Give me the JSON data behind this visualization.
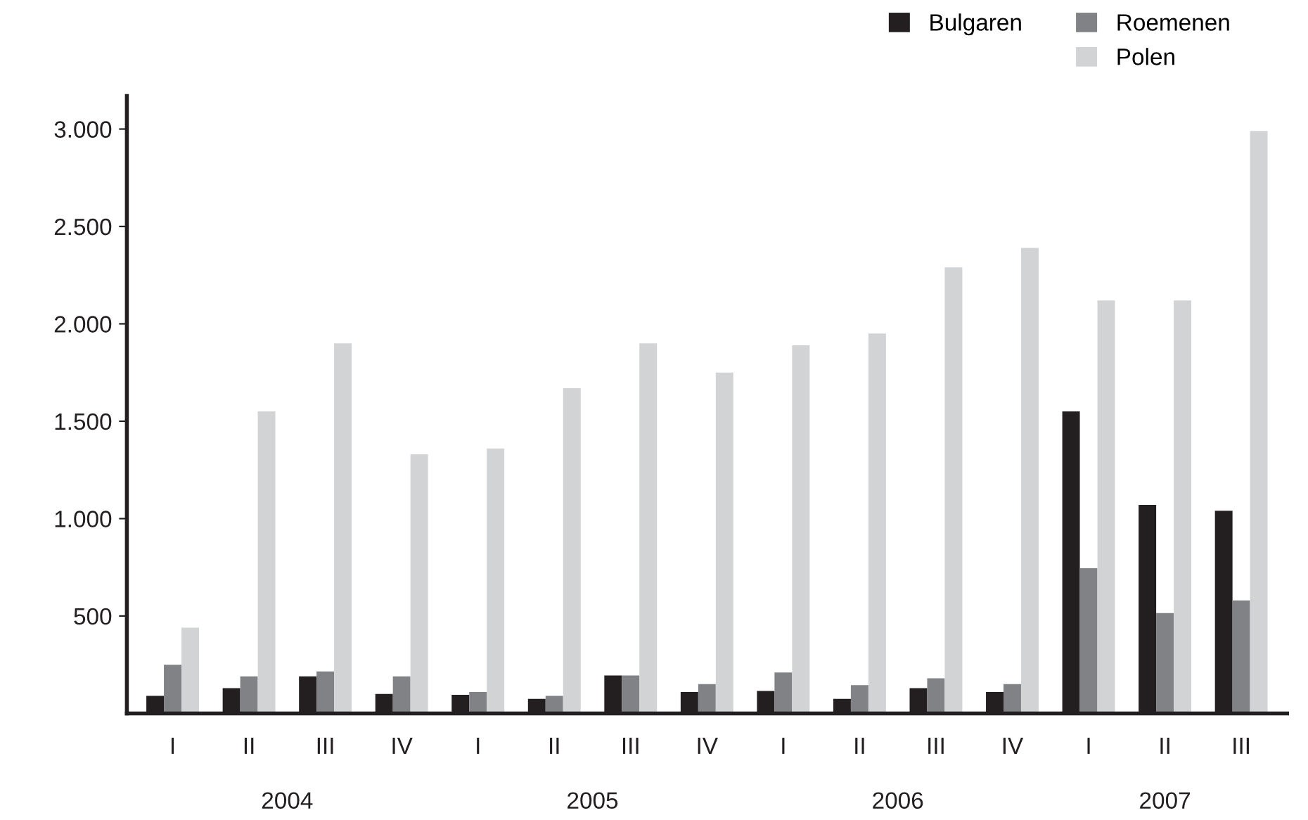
{
  "chart_data": {
    "type": "bar",
    "categories": [
      "I",
      "II",
      "III",
      "IV",
      "I",
      "II",
      "III",
      "IV",
      "I",
      "II",
      "III",
      "IV",
      "I",
      "II",
      "III"
    ],
    "series": [
      {
        "name": "Bulgaren",
        "color": "#231f20",
        "values": [
          90,
          130,
          190,
          100,
          95,
          75,
          195,
          110,
          115,
          75,
          130,
          110,
          1550,
          1070,
          1040
        ]
      },
      {
        "name": "Roemenen",
        "color": "#808285",
        "values": [
          250,
          190,
          215,
          190,
          110,
          90,
          195,
          150,
          210,
          145,
          180,
          150,
          745,
          515,
          580
        ]
      },
      {
        "name": "Polen",
        "color": "#d1d3d4",
        "values": [
          440,
          1550,
          1900,
          1330,
          1360,
          1670,
          1900,
          1750,
          1890,
          1950,
          2290,
          2390,
          2120,
          2120,
          2990
        ]
      }
    ],
    "annotations": [
      "2004",
      "2005",
      "2006",
      "2007"
    ],
    "ylim": [
      0,
      3170
    ],
    "yticks": [
      {
        "value": 500,
        "label": "500"
      },
      {
        "value": 1000,
        "label": "1.000"
      },
      {
        "value": 1500,
        "label": "1.500"
      },
      {
        "value": 2000,
        "label": "2.000"
      },
      {
        "value": 2500,
        "label": "2.500"
      },
      {
        "value": 3000,
        "label": "3.000"
      }
    ],
    "grid": false,
    "legend": "top right"
  }
}
